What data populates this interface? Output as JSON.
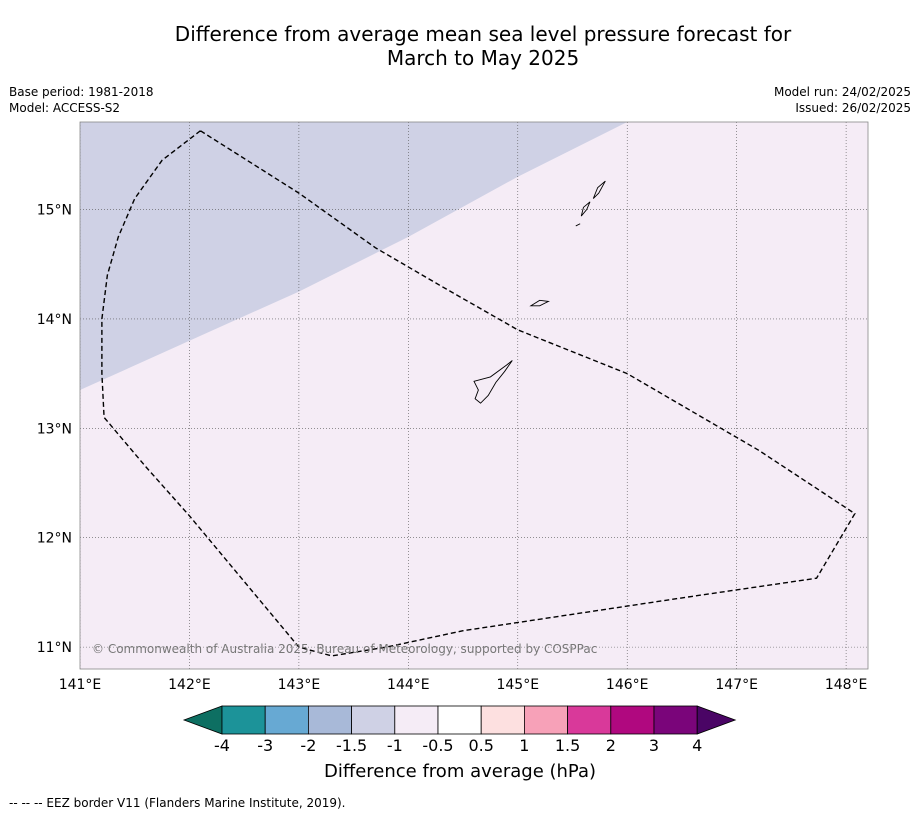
{
  "title_line1": "Difference from average mean sea level pressure forecast for",
  "title_line2": "March to May 2025",
  "meta_left": {
    "base_period": "Base period: 1981-2018",
    "model": "Model: ACCESS-S2"
  },
  "meta_right": {
    "model_run": "Model run: 24/02/2025",
    "issued": "Issued: 26/02/2025"
  },
  "credit": "© Commonwealth of Australia 2025, Bureau of Meteorology, supported by COSPPac",
  "footnote": "-- -- -- EEZ border V11 (Flanders Marine Institute, 2019).",
  "colors": {
    "anomaly_neg_1_5_to_neg_1": "#cfd1e5",
    "anomaly_neg_1_to_neg_0_5": "#f5ecf6",
    "frame": "#888888",
    "grid": "#555555"
  },
  "map_data": {
    "lon_range": [
      141.0,
      148.2
    ],
    "lat_range": [
      10.8,
      15.8
    ],
    "lon_ticks": [
      {
        "value": 141,
        "label": "141°E"
      },
      {
        "value": 142,
        "label": "142°E"
      },
      {
        "value": 143,
        "label": "143°E"
      },
      {
        "value": 144,
        "label": "144°E"
      },
      {
        "value": 145,
        "label": "145°E"
      },
      {
        "value": 146,
        "label": "146°E"
      },
      {
        "value": 147,
        "label": "147°E"
      },
      {
        "value": 148,
        "label": "148°E"
      }
    ],
    "lat_ticks": [
      {
        "value": 11,
        "label": "11°N"
      },
      {
        "value": 12,
        "label": "12°N"
      },
      {
        "value": 13,
        "label": "13°N"
      },
      {
        "value": 14,
        "label": "14°N"
      },
      {
        "value": 15,
        "label": "15°N"
      }
    ],
    "zone_boundary": [
      [
        141.0,
        13.35
      ],
      [
        142.0,
        13.8
      ],
      [
        143.0,
        14.25
      ],
      [
        144.0,
        14.75
      ],
      [
        145.0,
        15.3
      ],
      [
        146.0,
        15.8
      ]
    ],
    "eez_border": [
      [
        142.1,
        15.72
      ],
      [
        141.75,
        15.45
      ],
      [
        141.5,
        15.1
      ],
      [
        141.35,
        14.75
      ],
      [
        141.25,
        14.4
      ],
      [
        141.2,
        14.0
      ],
      [
        141.2,
        13.5
      ],
      [
        141.22,
        13.1
      ],
      [
        141.6,
        12.65
      ],
      [
        142.0,
        12.2
      ],
      [
        142.5,
        11.6
      ],
      [
        143.0,
        11.0
      ],
      [
        143.3,
        10.92
      ],
      [
        143.8,
        11.0
      ],
      [
        144.5,
        11.15
      ],
      [
        145.5,
        11.3
      ],
      [
        146.5,
        11.45
      ],
      [
        147.73,
        11.63
      ],
      [
        148.08,
        12.22
      ],
      [
        147.2,
        12.8
      ],
      [
        146.0,
        13.5
      ],
      [
        145.0,
        13.9
      ],
      [
        144.3,
        14.3
      ],
      [
        143.7,
        14.65
      ],
      [
        143.0,
        15.15
      ],
      [
        142.1,
        15.72
      ]
    ],
    "islands": [
      {
        "name": "Guam",
        "coords": [
          [
            144.6,
            13.43
          ],
          [
            144.75,
            13.47
          ],
          [
            144.9,
            13.58
          ],
          [
            144.95,
            13.62
          ],
          [
            144.88,
            13.52
          ],
          [
            144.8,
            13.42
          ],
          [
            144.73,
            13.3
          ],
          [
            144.66,
            13.23
          ],
          [
            144.61,
            13.27
          ],
          [
            144.64,
            13.35
          ],
          [
            144.6,
            13.43
          ]
        ]
      },
      {
        "name": "Rota",
        "coords": [
          [
            145.12,
            14.12
          ],
          [
            145.2,
            14.17
          ],
          [
            145.28,
            14.16
          ],
          [
            145.2,
            14.12
          ],
          [
            145.12,
            14.12
          ]
        ]
      },
      {
        "name": "Tinian",
        "coords": [
          [
            145.58,
            14.94
          ],
          [
            145.63,
            15.0
          ],
          [
            145.66,
            15.07
          ],
          [
            145.6,
            15.02
          ],
          [
            145.58,
            14.94
          ]
        ]
      },
      {
        "name": "Saipan",
        "coords": [
          [
            145.69,
            15.1
          ],
          [
            145.73,
            15.2
          ],
          [
            145.8,
            15.26
          ],
          [
            145.74,
            15.15
          ],
          [
            145.69,
            15.1
          ]
        ]
      },
      {
        "name": "Aguijan",
        "coords": [
          [
            145.53,
            14.85
          ],
          [
            145.57,
            14.87
          ]
        ]
      }
    ]
  },
  "colorbar": {
    "title": "Difference from average (hPa)",
    "labels": [
      "-4",
      "-3",
      "-2",
      "-1.5",
      "-1",
      "-0.5",
      "0.5",
      "1",
      "1.5",
      "2",
      "3",
      "4"
    ],
    "colors": [
      "#0d6f62",
      "#1c9399",
      "#67a9d3",
      "#a8b9d8",
      "#cfd1e5",
      "#f5ecf6",
      "#ffffff",
      "#fde0e0",
      "#f7a1b8",
      "#d9399a",
      "#b0087f",
      "#7a057a",
      "#4a0565"
    ]
  }
}
